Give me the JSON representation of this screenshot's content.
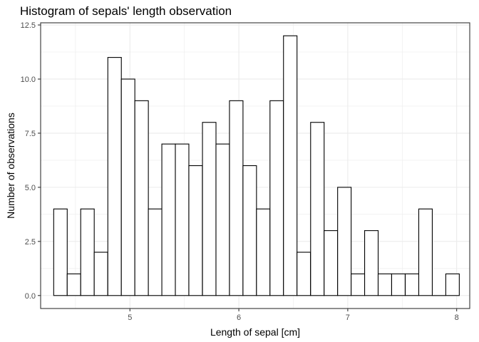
{
  "chart_data": {
    "type": "bar",
    "title": "Histogram of sepals' length observation",
    "xlabel": "Length of sepal [cm]",
    "ylabel": "Number of observations",
    "xlim": [
      4.18,
      8.12
    ],
    "ylim": [
      -0.6,
      12.6
    ],
    "x_ticks": [
      5,
      6,
      7,
      8
    ],
    "x_tick_labels": [
      "5",
      "6",
      "7",
      "8"
    ],
    "y_ticks": [
      0,
      2.5,
      5,
      7.5,
      10,
      12.5
    ],
    "y_tick_labels": [
      "0.0",
      "2.5",
      "5.0",
      "7.5",
      "10.0",
      "12.5"
    ],
    "grid": true,
    "bin_width": 0.1241,
    "bins": [
      {
        "x": 4.3,
        "count": 4
      },
      {
        "x": 4.424,
        "count": 1
      },
      {
        "x": 4.548,
        "count": 4
      },
      {
        "x": 4.672,
        "count": 2
      },
      {
        "x": 4.797,
        "count": 11
      },
      {
        "x": 4.921,
        "count": 10
      },
      {
        "x": 5.045,
        "count": 9
      },
      {
        "x": 5.169,
        "count": 4
      },
      {
        "x": 5.293,
        "count": 7
      },
      {
        "x": 5.417,
        "count": 7
      },
      {
        "x": 5.541,
        "count": 6
      },
      {
        "x": 5.666,
        "count": 8
      },
      {
        "x": 5.79,
        "count": 7
      },
      {
        "x": 5.914,
        "count": 9
      },
      {
        "x": 6.038,
        "count": 6
      },
      {
        "x": 6.162,
        "count": 4
      },
      {
        "x": 6.286,
        "count": 9
      },
      {
        "x": 6.41,
        "count": 12
      },
      {
        "x": 6.534,
        "count": 2
      },
      {
        "x": 6.659,
        "count": 8
      },
      {
        "x": 6.783,
        "count": 3
      },
      {
        "x": 6.907,
        "count": 5
      },
      {
        "x": 7.031,
        "count": 1
      },
      {
        "x": 7.155,
        "count": 3
      },
      {
        "x": 7.279,
        "count": 1
      },
      {
        "x": 7.403,
        "count": 1
      },
      {
        "x": 7.528,
        "count": 1
      },
      {
        "x": 7.652,
        "count": 4
      },
      {
        "x": 7.776,
        "count": 0
      },
      {
        "x": 7.9,
        "count": 1
      }
    ],
    "bar_fill": "#ffffff",
    "bar_stroke": "#000000",
    "grid_color": "#ebebeb",
    "panel_border": "#333333"
  }
}
